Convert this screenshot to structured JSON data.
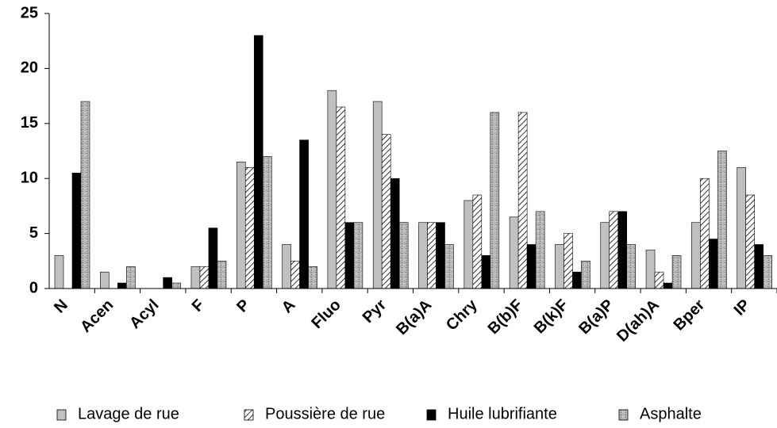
{
  "chart_data": {
    "type": "bar",
    "categories": [
      "N",
      "Acen",
      "Acyl",
      "F",
      "P",
      "A",
      "Fluo",
      "Pyr",
      "B(a)A",
      "Chry",
      "B(b)F",
      "B(k)F",
      "B(a)P",
      "D(ah)A",
      "Bper",
      "IP"
    ],
    "series": [
      {
        "name": "Lavage de rue",
        "color": "#c0c0c0",
        "values": [
          3,
          1.5,
          0,
          2,
          11.5,
          4,
          18,
          17,
          6,
          8,
          6.5,
          4,
          6,
          3.5,
          6,
          11
        ]
      },
      {
        "name": "Poussière de rue",
        "color": "#ffffff",
        "pattern": "hatch",
        "values": [
          0,
          0,
          0,
          2,
          11,
          2.5,
          16.5,
          14,
          6,
          8.5,
          16,
          5,
          7,
          1.5,
          10,
          8.5
        ]
      },
      {
        "name": "Huile lubrifiante",
        "color": "#000000",
        "values": [
          10.5,
          0.5,
          1,
          5.5,
          23,
          13.5,
          6,
          10,
          6,
          3,
          4,
          1.5,
          7,
          0.5,
          4.5,
          4
        ]
      },
      {
        "name": "Asphalte",
        "color": "#a8a8a8",
        "pattern": "speckle",
        "values": [
          17,
          2,
          0.5,
          2.5,
          12,
          2,
          6,
          6,
          4,
          16,
          7,
          2.5,
          4,
          3,
          12.5,
          3
        ]
      }
    ],
    "ylim": [
      0,
      25
    ],
    "yticks": [
      0,
      5,
      10,
      15,
      20,
      25
    ],
    "grid": false,
    "legend": "bottom"
  }
}
